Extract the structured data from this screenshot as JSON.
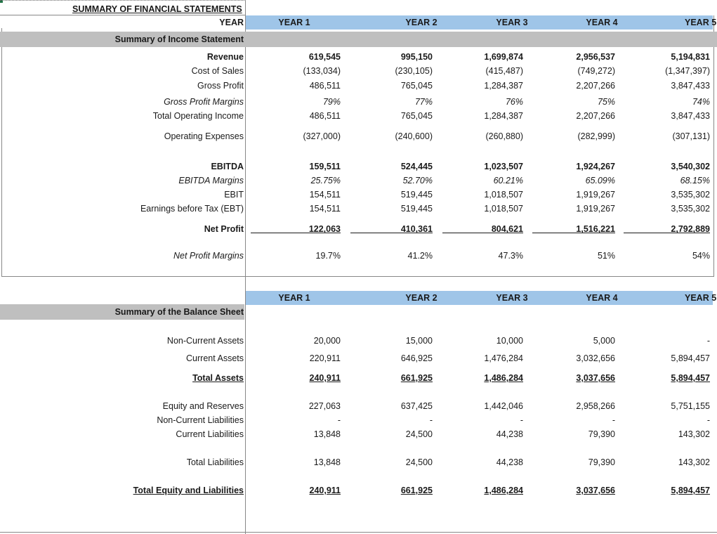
{
  "title": "SUMMARY OF FINANCIAL STATEMENTS",
  "year_label": "YEAR",
  "years": [
    "YEAR 1",
    "YEAR 2",
    "YEAR 3",
    "YEAR 4",
    "YEAR 5"
  ],
  "income": {
    "section": "Summary of Income Statement",
    "rows": [
      {
        "label": "Revenue",
        "values": [
          "619,545",
          "995,150",
          "1,699,874",
          "2,956,537",
          "5,194,831"
        ]
      },
      {
        "label": "Cost of Sales",
        "values": [
          "(133,034)",
          "(230,105)",
          "(415,487)",
          "(749,272)",
          "(1,347,397)"
        ]
      },
      {
        "label": "Gross Profit",
        "values": [
          "486,511",
          "765,045",
          "1,284,387",
          "2,207,266",
          "3,847,433"
        ]
      },
      {
        "label": "Gross Profit Margins",
        "values": [
          "79%",
          "77%",
          "76%",
          "75%",
          "74%"
        ]
      },
      {
        "label": "Total Operating Income",
        "values": [
          "486,511",
          "765,045",
          "1,284,387",
          "2,207,266",
          "3,847,433"
        ]
      },
      {
        "label": "Operating Expenses",
        "values": [
          "(327,000)",
          "(240,600)",
          "(260,880)",
          "(282,999)",
          "(307,131)"
        ]
      },
      {
        "label": "EBITDA",
        "values": [
          "159,511",
          "524,445",
          "1,023,507",
          "1,924,267",
          "3,540,302"
        ]
      },
      {
        "label": "EBITDA Margins",
        "values": [
          "25.75%",
          "52.70%",
          "60.21%",
          "65.09%",
          "68.15%"
        ]
      },
      {
        "label": "EBIT",
        "values": [
          "154,511",
          "519,445",
          "1,018,507",
          "1,919,267",
          "3,535,302"
        ]
      },
      {
        "label": "Earnings before Tax (EBT)",
        "values": [
          "154,511",
          "519,445",
          "1,018,507",
          "1,919,267",
          "3,535,302"
        ]
      },
      {
        "label": "Net Profit",
        "values": [
          "122,063",
          "410,361",
          "804,621",
          "1,516,221",
          "2,792,889"
        ]
      },
      {
        "label": "Net Profit Margins",
        "values": [
          "19.7%",
          "41.2%",
          "47.3%",
          "51%",
          "54%"
        ]
      }
    ]
  },
  "balance": {
    "section": "Summary of the Balance Sheet",
    "rows": [
      {
        "label": "Non-Current Assets",
        "values": [
          "20,000",
          "15,000",
          "10,000",
          "5,000",
          "-"
        ]
      },
      {
        "label": "Current Assets",
        "values": [
          "220,911",
          "646,925",
          "1,476,284",
          "3,032,656",
          "5,894,457"
        ]
      },
      {
        "label": "Total Assets",
        "values": [
          "240,911",
          "661,925",
          "1,486,284",
          "3,037,656",
          "5,894,457"
        ]
      },
      {
        "label": "Equity and Reserves",
        "values": [
          "227,063",
          "637,425",
          "1,442,046",
          "2,958,266",
          "5,751,155"
        ]
      },
      {
        "label": "Non-Current Liabilities",
        "values": [
          "-",
          "-",
          "-",
          "-",
          "-"
        ]
      },
      {
        "label": "Current Liabilities",
        "values": [
          "13,848",
          "24,500",
          "44,238",
          "79,390",
          "143,302"
        ]
      },
      {
        "label": "Total Liabilities",
        "values": [
          "13,848",
          "24,500",
          "44,238",
          "79,390",
          "143,302"
        ]
      },
      {
        "label": "Total Equity and Liabilities",
        "values": [
          "240,911",
          "661,925",
          "1,486,284",
          "3,037,656",
          "5,894,457"
        ]
      }
    ]
  },
  "colors": {
    "year_band": "#9fc5e8",
    "section_band": "#bfbfbf",
    "selection": "#217346"
  }
}
